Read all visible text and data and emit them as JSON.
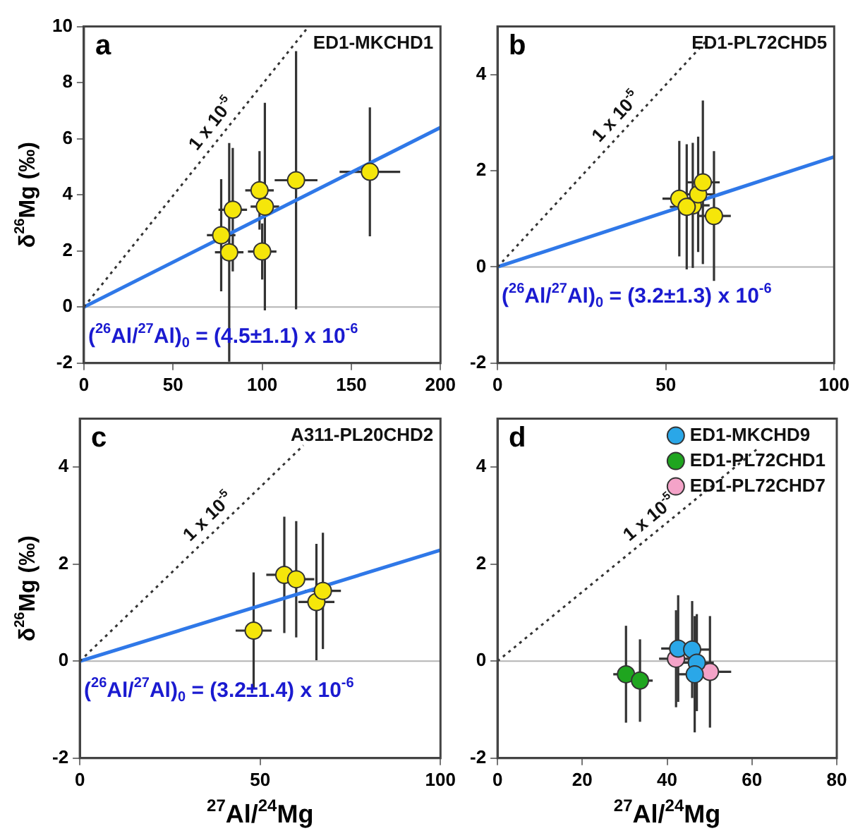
{
  "chart_data": [
    {
      "type": "scatter",
      "xlim": [
        0,
        200
      ],
      "ylim": [
        -2,
        10
      ],
      "xticks": [
        0,
        50,
        100,
        150,
        200
      ],
      "yticks": [
        -2,
        0,
        2,
        4,
        6,
        8,
        10
      ],
      "ylabel": "δ$^{26}$Mg (‰)",
      "annotations": [
        "a",
        "ED1-MKCHD1",
        "($^{26}$Al/$^{27}$Al)$_{0}$ = (4.5±1.1) x 10$^{-6}$"
      ],
      "ref_lines": [
        {
          "axis": "y",
          "value": 0,
          "color": "#b4b4b4"
        }
      ],
      "series": [
        {
          "type": "scatter",
          "marker": "circle",
          "color": "#f5e60a",
          "x": [
            77,
            81.5,
            83.5,
            98.5,
            101.5,
            100,
            119,
            160.4
          ],
          "values": [
            2.56,
            1.95,
            3.47,
            4.16,
            3.58,
            1.98,
            4.52,
            4.82
          ],
          "errors": [
            2,
            3.9,
            2.2,
            1.4,
            3.7,
            1,
            4.6,
            2.3
          ],
          "xerrors": [
            8,
            8,
            8,
            8,
            8,
            8,
            12,
            17
          ]
        },
        {
          "type": "line",
          "marker": "none",
          "name": "1 x 10$^{-5}$",
          "color": "#333333",
          "line_style": "dotted",
          "x": [
            0,
            126
          ],
          "values": [
            0,
            10
          ]
        },
        {
          "type": "line",
          "marker": "none",
          "color": "#2f78e8",
          "x": [
            0,
            200
          ],
          "values": [
            0,
            6.4
          ]
        }
      ]
    },
    {
      "type": "scatter",
      "xlim": [
        0,
        100
      ],
      "ylim": [
        -2,
        5
      ],
      "xticks": [
        0,
        50,
        100
      ],
      "yticks": [
        -2,
        0,
        2,
        4
      ],
      "annotations": [
        "b",
        "ED1-PL72CHD5",
        "($^{26}$Al/$^{27}$Al)$_{0}$ = (3.2±1.3) x 10$^{-6}$"
      ],
      "ref_lines": [
        {
          "axis": "y",
          "value": 0,
          "color": "#b4b4b4"
        }
      ],
      "series": [
        {
          "type": "scatter",
          "marker": "circle",
          "color": "#f5e60a",
          "x": [
            54,
            58,
            56.2,
            59.6,
            61,
            64.3
          ],
          "values": [
            1.42,
            1.28,
            1.25,
            1.51,
            1.76,
            1.06
          ],
          "errors": [
            1.2,
            1.3,
            1.3,
            1.2,
            1.7,
            1.35
          ],
          "xerrors": [
            5,
            5,
            5,
            5,
            5,
            5
          ]
        },
        {
          "type": "line",
          "marker": "none",
          "name": "1 x 10$^{-5}$",
          "color": "#333333",
          "line_style": "dotted",
          "x": [
            0,
            62
          ],
          "values": [
            0,
            4.7
          ]
        },
        {
          "type": "line",
          "marker": "none",
          "color": "#2f78e8",
          "x": [
            0,
            100
          ],
          "values": [
            0,
            2.29
          ]
        }
      ]
    },
    {
      "type": "scatter",
      "xlim": [
        0,
        100
      ],
      "ylim": [
        -2,
        5
      ],
      "xticks": [
        0,
        50,
        100
      ],
      "yticks": [
        -2,
        0,
        2,
        4
      ],
      "xlabel": "$^{27}$Al/$^{24}$Mg",
      "ylabel": "δ$^{26}$Mg (‰)",
      "annotations": [
        "c",
        "A311-PL20CHD2",
        "($^{26}$Al/$^{27}$Al)$_{0}$ = (3.2±1.4) x 10$^{-6}$"
      ],
      "ref_lines": [
        {
          "axis": "y",
          "value": 0,
          "color": "#b4b4b4"
        }
      ],
      "series": [
        {
          "type": "scatter",
          "marker": "circle",
          "color": "#f5e60a",
          "x": [
            48.2,
            56.7,
            60,
            65.6,
            67.4
          ],
          "values": [
            0.63,
            1.78,
            1.69,
            1.22,
            1.45
          ],
          "errors": [
            1.2,
            1.2,
            1.2,
            1.2,
            1.2
          ],
          "xerrors": [
            5,
            5,
            5,
            5,
            5
          ]
        },
        {
          "type": "line",
          "marker": "none",
          "name": "1 x 10$^{-5}$",
          "color": "#333333",
          "line_style": "dotted",
          "x": [
            0,
            62
          ],
          "values": [
            0,
            4.45
          ]
        },
        {
          "type": "line",
          "marker": "none",
          "color": "#2f78e8",
          "x": [
            0,
            100
          ],
          "values": [
            0,
            2.29
          ]
        }
      ]
    },
    {
      "type": "scatter",
      "xlim": [
        0,
        80
      ],
      "ylim": [
        -2,
        5
      ],
      "xticks": [
        0,
        20,
        40,
        60,
        80
      ],
      "yticks": [
        -2,
        0,
        2,
        4
      ],
      "xlabel": "$^{27}$Al/$^{24}$Mg",
      "legend": "top right",
      "annotations": [
        "d"
      ],
      "ref_lines": [
        {
          "axis": "y",
          "value": 0,
          "color": "#b4b4b4"
        }
      ],
      "series": [
        {
          "type": "scatter",
          "marker": "circle",
          "name": "ED1-MKCHD9",
          "color": "#2aa7e8",
          "x": [
            42.6,
            45.9,
            47,
            46.5
          ],
          "values": [
            0.26,
            0.24,
            -0.03,
            -0.27
          ],
          "errors": [
            1.1,
            1,
            1,
            1.2
          ],
          "xerrors": [
            4,
            4,
            4,
            4
          ]
        },
        {
          "type": "scatter",
          "marker": "circle",
          "name": "ED1-PL72CHD1",
          "color": "#1fa51f",
          "x": [
            30.3,
            33.6
          ],
          "values": [
            -0.27,
            -0.4
          ],
          "errors": [
            1,
            0.85
          ],
          "xerrors": [
            3,
            3
          ]
        },
        {
          "type": "scatter",
          "marker": "circle",
          "name": "ED1-PL72CHD7",
          "color": "#f4a3c8",
          "x": [
            42.1,
            50.1
          ],
          "values": [
            0.05,
            -0.22
          ],
          "errors": [
            1,
            1.15
          ],
          "xerrors": [
            4,
            5
          ]
        },
        {
          "type": "line",
          "marker": "none",
          "name": "1 x 10$^{-5}$",
          "color": "#333333",
          "line_style": "dotted",
          "x": [
            0,
            61.3
          ],
          "values": [
            0,
            4.38
          ]
        }
      ]
    }
  ]
}
